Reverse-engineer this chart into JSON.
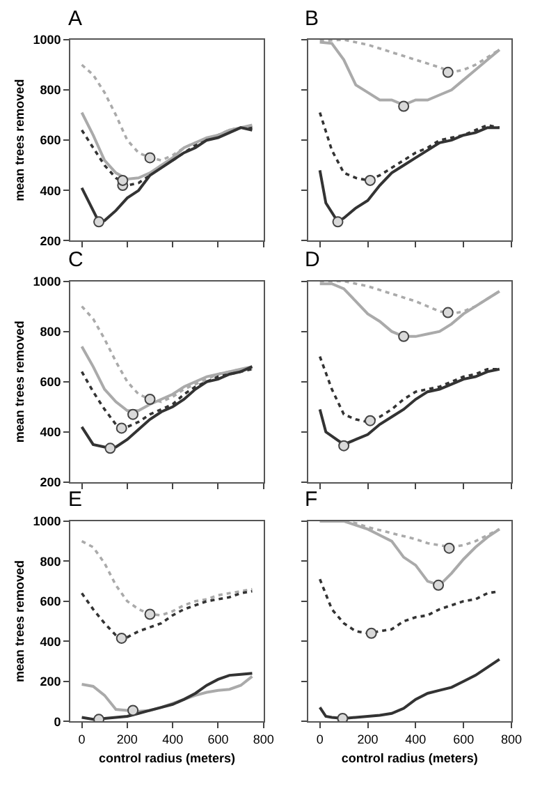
{
  "chart_data": [
    {
      "type": "line",
      "title": "A",
      "ylabel": "mean trees removed",
      "xlim": [
        -50,
        800
      ],
      "xticks": [
        {
          "value": 0,
          "label": null
        },
        {
          "value": 200,
          "label": null
        },
        {
          "value": 400,
          "label": null
        },
        {
          "value": 600,
          "label": null
        },
        {
          "value": 800,
          "label": null
        }
      ],
      "ylim": [
        200,
        1000
      ],
      "yticks": [
        200,
        400,
        600,
        800,
        1000
      ],
      "tick_labels": "y",
      "series": [
        {
          "color": "#aaaaaa",
          "line_style": "dotted",
          "x": [
            0,
            50,
            100,
            150,
            200,
            250,
            300,
            350,
            400,
            450,
            500,
            550,
            600,
            650,
            700,
            750
          ],
          "values": [
            900,
            860,
            790,
            700,
            600,
            550,
            530,
            520,
            540,
            570,
            590,
            600,
            620,
            630,
            650,
            650
          ]
        },
        {
          "color": "#333333",
          "line_style": "dotted",
          "x": [
            0,
            50,
            100,
            150,
            200,
            250,
            300,
            350,
            400,
            450,
            500,
            550,
            600,
            650,
            700,
            750
          ],
          "values": [
            640,
            570,
            500,
            450,
            420,
            430,
            460,
            500,
            520,
            550,
            580,
            600,
            620,
            640,
            650,
            650
          ]
        },
        {
          "color": "#aaaaaa",
          "line_style": "solid",
          "x": [
            0,
            50,
            100,
            150,
            200,
            250,
            300,
            350,
            400,
            450,
            500,
            550,
            600,
            650,
            700,
            750
          ],
          "values": [
            710,
            620,
            520,
            470,
            445,
            450,
            470,
            500,
            530,
            570,
            590,
            610,
            620,
            640,
            650,
            660
          ]
        },
        {
          "color": "#333333",
          "line_style": "solid",
          "x": [
            0,
            50,
            75,
            100,
            150,
            200,
            250,
            300,
            350,
            400,
            450,
            500,
            550,
            600,
            650,
            700,
            750
          ],
          "values": [
            410,
            320,
            275,
            280,
            320,
            370,
            400,
            460,
            490,
            520,
            550,
            570,
            600,
            610,
            630,
            650,
            640
          ]
        },
        {
          "type": "scatter",
          "color": "#d9d9d9",
          "marker": "circle",
          "x": [
            300,
            180,
            180,
            75
          ],
          "values": [
            530,
            420,
            440,
            275
          ]
        }
      ]
    },
    {
      "type": "line",
      "title": "B",
      "xlim": [
        -50,
        800
      ],
      "xticks": [
        {
          "value": 0,
          "label": null
        },
        {
          "value": 200,
          "label": null
        },
        {
          "value": 400,
          "label": null
        },
        {
          "value": 600,
          "label": null
        },
        {
          "value": 800,
          "label": null
        }
      ],
      "ylim": [
        200,
        1000
      ],
      "yticks": [
        {
          "value": 200,
          "label": null
        },
        {
          "value": 400,
          "label": null
        },
        {
          "value": 600,
          "label": null
        },
        {
          "value": 800,
          "label": null
        },
        {
          "value": 1000,
          "label": null
        }
      ],
      "tick_labels": false,
      "series": [
        {
          "color": "#aaaaaa",
          "line_style": "dotted",
          "x": [
            0,
            100,
            200,
            300,
            400,
            500,
            550,
            600,
            650,
            700,
            750
          ],
          "values": [
            995,
            1000,
            980,
            950,
            920,
            890,
            870,
            880,
            900,
            930,
            960
          ]
        },
        {
          "color": "#aaaaaa",
          "line_style": "solid",
          "x": [
            0,
            50,
            100,
            150,
            200,
            250,
            300,
            350,
            400,
            450,
            500,
            550,
            600,
            650,
            700,
            750
          ],
          "values": [
            990,
            985,
            920,
            820,
            790,
            760,
            760,
            740,
            760,
            760,
            780,
            800,
            840,
            880,
            920,
            960
          ]
        },
        {
          "color": "#333333",
          "line_style": "dotted",
          "x": [
            0,
            50,
            100,
            150,
            200,
            250,
            300,
            350,
            400,
            450,
            500,
            550,
            600,
            650,
            700,
            750
          ],
          "values": [
            710,
            560,
            470,
            450,
            440,
            460,
            490,
            520,
            550,
            570,
            600,
            610,
            620,
            640,
            660,
            650
          ]
        },
        {
          "color": "#333333",
          "line_style": "solid",
          "x": [
            0,
            25,
            75,
            100,
            150,
            200,
            250,
            300,
            350,
            400,
            450,
            500,
            550,
            600,
            650,
            700,
            750
          ],
          "values": [
            480,
            350,
            275,
            290,
            330,
            360,
            420,
            470,
            500,
            530,
            560,
            590,
            600,
            620,
            630,
            650,
            650
          ]
        },
        {
          "type": "scatter",
          "color": "#d9d9d9",
          "marker": "circle",
          "x": [
            535,
            350,
            210,
            75
          ],
          "values": [
            870,
            735,
            440,
            275
          ]
        }
      ]
    },
    {
      "type": "line",
      "title": "C",
      "ylabel": "mean trees removed",
      "xlim": [
        -50,
        800
      ],
      "xticks": [
        {
          "value": 0,
          "label": null
        },
        {
          "value": 200,
          "label": null
        },
        {
          "value": 400,
          "label": null
        },
        {
          "value": 600,
          "label": null
        },
        {
          "value": 800,
          "label": null
        }
      ],
      "ylim": [
        200,
        1000
      ],
      "yticks": [
        200,
        400,
        600,
        800,
        1000
      ],
      "tick_labels": "y",
      "series": [
        {
          "color": "#aaaaaa",
          "line_style": "dotted",
          "x": [
            0,
            50,
            100,
            150,
            200,
            250,
            300,
            350,
            400,
            450,
            500,
            550,
            600,
            650,
            700,
            750
          ],
          "values": [
            900,
            850,
            770,
            680,
            600,
            550,
            530,
            520,
            540,
            570,
            590,
            610,
            630,
            640,
            650,
            650
          ]
        },
        {
          "color": "#aaaaaa",
          "line_style": "solid",
          "x": [
            0,
            50,
            100,
            150,
            200,
            250,
            300,
            350,
            400,
            450,
            500,
            550,
            600,
            650,
            700,
            750
          ],
          "values": [
            740,
            660,
            570,
            520,
            485,
            485,
            510,
            530,
            550,
            580,
            600,
            620,
            630,
            640,
            650,
            660
          ]
        },
        {
          "color": "#333333",
          "line_style": "dotted",
          "x": [
            0,
            50,
            100,
            150,
            200,
            250,
            300,
            350,
            400,
            450,
            500,
            550,
            600,
            650,
            700,
            750
          ],
          "values": [
            640,
            560,
            490,
            430,
            420,
            440,
            470,
            490,
            510,
            550,
            580,
            600,
            620,
            630,
            640,
            650
          ]
        },
        {
          "color": "#333333",
          "line_style": "solid",
          "x": [
            0,
            50,
            100,
            150,
            200,
            250,
            300,
            350,
            400,
            450,
            500,
            550,
            600,
            650,
            700,
            750
          ],
          "values": [
            420,
            350,
            340,
            340,
            370,
            410,
            450,
            480,
            500,
            530,
            570,
            600,
            610,
            630,
            640,
            660
          ]
        },
        {
          "type": "scatter",
          "color": "#d9d9d9",
          "marker": "circle",
          "x": [
            300,
            225,
            175,
            125
          ],
          "values": [
            530,
            470,
            415,
            335
          ]
        }
      ]
    },
    {
      "type": "line",
      "title": "D",
      "xlim": [
        -50,
        800
      ],
      "xticks": [
        {
          "value": 0,
          "label": null
        },
        {
          "value": 200,
          "label": null
        },
        {
          "value": 400,
          "label": null
        },
        {
          "value": 600,
          "label": null
        },
        {
          "value": 800,
          "label": null
        }
      ],
      "ylim": [
        200,
        1000
      ],
      "yticks": [
        {
          "value": 200,
          "label": null
        },
        {
          "value": 400,
          "label": null
        },
        {
          "value": 600,
          "label": null
        },
        {
          "value": 800,
          "label": null
        },
        {
          "value": 1000,
          "label": null
        }
      ],
      "tick_labels": false,
      "series": [
        {
          "color": "#aaaaaa",
          "line_style": "dotted",
          "x": [
            0,
            100,
            200,
            300,
            400,
            450,
            500,
            550,
            600,
            650,
            700,
            750
          ],
          "values": [
            1000,
            1000,
            980,
            950,
            920,
            900,
            880,
            870,
            880,
            900,
            930,
            960
          ]
        },
        {
          "color": "#aaaaaa",
          "line_style": "solid",
          "x": [
            0,
            50,
            100,
            150,
            200,
            250,
            300,
            350,
            400,
            450,
            500,
            550,
            600,
            650,
            700,
            750
          ],
          "values": [
            990,
            990,
            970,
            920,
            870,
            840,
            800,
            780,
            780,
            790,
            800,
            830,
            870,
            900,
            930,
            960
          ]
        },
        {
          "color": "#333333",
          "line_style": "dotted",
          "x": [
            0,
            50,
            100,
            150,
            200,
            250,
            300,
            350,
            400,
            450,
            500,
            550,
            600,
            650,
            700,
            750
          ],
          "values": [
            700,
            570,
            470,
            450,
            440,
            460,
            490,
            530,
            560,
            570,
            580,
            600,
            620,
            630,
            650,
            650
          ]
        },
        {
          "color": "#333333",
          "line_style": "solid",
          "x": [
            0,
            25,
            100,
            150,
            200,
            250,
            300,
            350,
            400,
            450,
            500,
            550,
            600,
            650,
            700,
            750
          ],
          "values": [
            490,
            400,
            350,
            370,
            390,
            430,
            460,
            490,
            530,
            560,
            570,
            590,
            610,
            620,
            640,
            650
          ]
        },
        {
          "type": "scatter",
          "color": "#d9d9d9",
          "marker": "circle",
          "x": [
            535,
            350,
            210,
            100
          ],
          "values": [
            875,
            780,
            445,
            345
          ]
        }
      ]
    },
    {
      "type": "line",
      "title": "E",
      "ylabel": "mean trees removed",
      "xlabel": "control radius (meters)",
      "xlim": [
        -50,
        800
      ],
      "xticks": [
        0,
        200,
        400,
        600,
        800
      ],
      "ylim": [
        0,
        1000
      ],
      "yticks": [
        0,
        200,
        400,
        600,
        800,
        1000
      ],
      "series": [
        {
          "color": "#aaaaaa",
          "line_style": "dotted",
          "x": [
            0,
            50,
            100,
            150,
            200,
            250,
            300,
            350,
            400,
            450,
            500,
            550,
            600,
            650,
            700,
            750
          ],
          "values": [
            900,
            870,
            790,
            680,
            600,
            560,
            535,
            530,
            550,
            580,
            600,
            610,
            630,
            640,
            650,
            660
          ]
        },
        {
          "color": "#333333",
          "line_style": "dotted",
          "x": [
            0,
            50,
            100,
            150,
            175,
            200,
            250,
            300,
            350,
            400,
            450,
            500,
            550,
            600,
            650,
            700,
            750
          ],
          "values": [
            640,
            560,
            490,
            430,
            410,
            420,
            450,
            470,
            490,
            530,
            560,
            580,
            600,
            610,
            620,
            640,
            650
          ]
        },
        {
          "color": "#aaaaaa",
          "line_style": "solid",
          "x": [
            0,
            50,
            100,
            150,
            200,
            250,
            300,
            350,
            400,
            450,
            500,
            550,
            600,
            650,
            700,
            750
          ],
          "values": [
            185,
            175,
            130,
            60,
            55,
            50,
            55,
            70,
            90,
            110,
            130,
            145,
            155,
            160,
            180,
            225
          ]
        },
        {
          "color": "#333333",
          "line_style": "solid",
          "x": [
            0,
            50,
            100,
            150,
            200,
            250,
            300,
            350,
            400,
            450,
            500,
            550,
            600,
            650,
            700,
            750
          ],
          "values": [
            20,
            10,
            15,
            20,
            25,
            40,
            55,
            70,
            85,
            110,
            140,
            180,
            210,
            230,
            235,
            240
          ]
        },
        {
          "type": "scatter",
          "color": "#d9d9d9",
          "marker": "circle",
          "x": [
            300,
            175,
            225,
            75
          ],
          "values": [
            535,
            415,
            55,
            10
          ]
        }
      ]
    },
    {
      "type": "line",
      "title": "F",
      "xlabel": "control radius (meters)",
      "xlim": [
        -50,
        800
      ],
      "xticks": [
        0,
        200,
        400,
        600,
        800
      ],
      "ylim": [
        0,
        1000
      ],
      "yticks": [
        {
          "value": 0,
          "label": null
        },
        {
          "value": 200,
          "label": null
        },
        {
          "value": 400,
          "label": null
        },
        {
          "value": 600,
          "label": null
        },
        {
          "value": 800,
          "label": null
        },
        {
          "value": 1000,
          "label": null
        }
      ],
      "tick_labels": "x",
      "series": [
        {
          "color": "#aaaaaa",
          "line_style": "dotted",
          "x": [
            0,
            100,
            150,
            200,
            300,
            400,
            450,
            500,
            550,
            600,
            650,
            700,
            750
          ],
          "values": [
            1000,
            1000,
            990,
            970,
            940,
            910,
            890,
            880,
            870,
            880,
            900,
            930,
            960
          ]
        },
        {
          "color": "#aaaaaa",
          "line_style": "solid",
          "x": [
            0,
            100,
            150,
            200,
            250,
            300,
            350,
            400,
            450,
            500,
            550,
            600,
            650,
            700,
            750
          ],
          "values": [
            1000,
            1000,
            980,
            960,
            930,
            900,
            820,
            780,
            700,
            680,
            740,
            810,
            870,
            920,
            960
          ]
        },
        {
          "color": "#333333",
          "line_style": "dotted",
          "x": [
            0,
            50,
            100,
            150,
            200,
            250,
            300,
            350,
            400,
            450,
            500,
            550,
            600,
            650,
            700,
            750
          ],
          "values": [
            710,
            560,
            490,
            450,
            440,
            450,
            460,
            500,
            520,
            530,
            560,
            580,
            600,
            610,
            640,
            650
          ]
        },
        {
          "color": "#333333",
          "line_style": "solid",
          "x": [
            0,
            25,
            50,
            100,
            150,
            200,
            250,
            300,
            350,
            400,
            450,
            500,
            550,
            600,
            650,
            700,
            750
          ],
          "values": [
            70,
            25,
            20,
            15,
            20,
            25,
            30,
            40,
            65,
            110,
            140,
            155,
            170,
            200,
            230,
            270,
            310
          ]
        },
        {
          "type": "scatter",
          "color": "#d9d9d9",
          "marker": "circle",
          "x": [
            540,
            495,
            215,
            95
          ],
          "values": [
            865,
            680,
            440,
            15
          ]
        }
      ]
    }
  ]
}
